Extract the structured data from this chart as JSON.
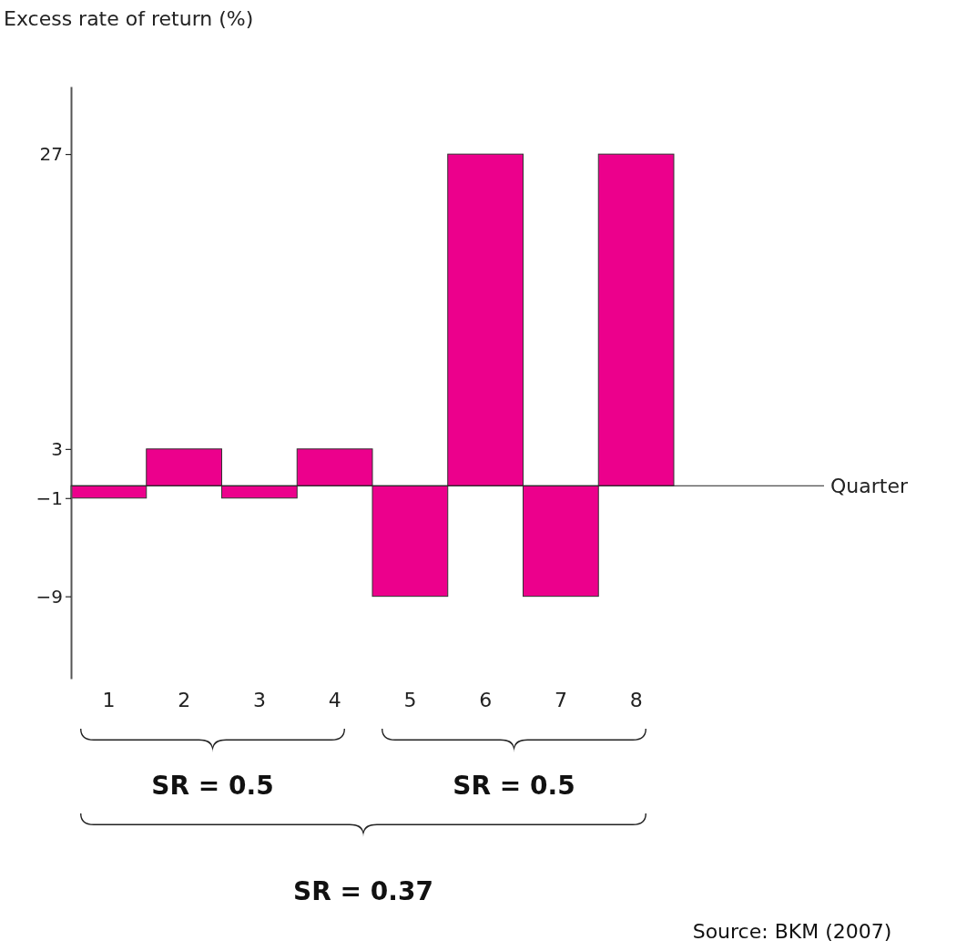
{
  "chart_data": {
    "type": "bar",
    "ylabel": "Excess rate of return (%)",
    "categories": [
      "1",
      "2",
      "3",
      "4",
      "5",
      "6",
      "7",
      "8"
    ],
    "values": [
      -1,
      3,
      -1,
      3,
      -9,
      27,
      -9,
      27
    ],
    "color": "#ec008c",
    "ylim": [
      -15.7,
      32.5
    ],
    "yticks": [
      {
        "value": -9,
        "label": "−9"
      },
      {
        "value": -1,
        "label": "−1"
      },
      3,
      27
    ],
    "grid": false,
    "annotations": [
      "Quarter",
      "SR = 0.5",
      "SR = 0.5",
      "SR = 0.37",
      "Source: BKM (2007)"
    ]
  }
}
